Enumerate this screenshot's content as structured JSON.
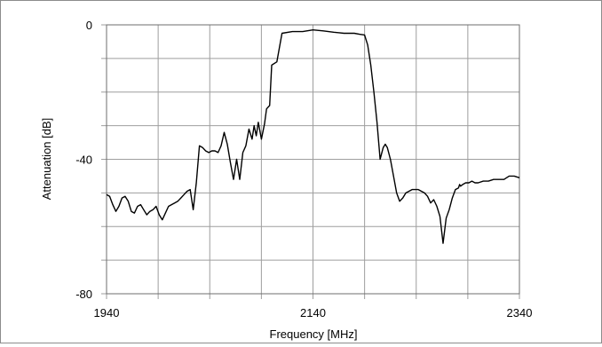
{
  "chart_data": {
    "type": "line",
    "xlabel": "Frequency [MHz]",
    "ylabel": "Attenuation  [dB]",
    "xlim": [
      1940,
      2340
    ],
    "ylim": [
      -80,
      0
    ],
    "x_tick_labels": [
      {
        "value": 1940,
        "label": "1940"
      },
      {
        "value": 2140,
        "label": "2140"
      },
      {
        "value": 2340,
        "label": "2340"
      }
    ],
    "y_tick_labels": [
      {
        "value": 0,
        "label": "0"
      },
      {
        "value": -40,
        "label": "-40"
      },
      {
        "value": -80,
        "label": "-80"
      }
    ],
    "grid_x": [
      1940,
      1990,
      2040,
      2090,
      2140,
      2190,
      2240,
      2290,
      2340
    ],
    "grid_y": [
      0,
      -10,
      -20,
      -30,
      -40,
      -50,
      -60,
      -70,
      -80
    ],
    "grid": true,
    "line_color": "#000000",
    "grid_color": "#9e9e9e",
    "series": [
      {
        "x": [
          1940,
          1943,
          1946,
          1949,
          1952,
          1955,
          1958,
          1961,
          1964,
          1967,
          1970,
          1973,
          1976,
          1979,
          1982,
          1985,
          1988,
          1991,
          1994,
          1997,
          2000,
          2003,
          2006,
          2009,
          2012,
          2015,
          2018,
          2021,
          2024,
          2027,
          2030,
          2033,
          2036,
          2039,
          2042,
          2045,
          2048,
          2051,
          2054,
          2057,
          2060,
          2063,
          2066,
          2069,
          2072,
          2075,
          2078,
          2081,
          2083,
          2085,
          2087,
          2090,
          2093,
          2095,
          2098,
          2100,
          2105,
          2110,
          2120,
          2130,
          2140,
          2150,
          2160,
          2170,
          2180,
          2185,
          2190,
          2193,
          2196,
          2199,
          2202,
          2205,
          2208,
          2210,
          2212,
          2215,
          2218,
          2221,
          2224,
          2227,
          2230,
          2233,
          2236,
          2239,
          2242,
          2245,
          2248,
          2251,
          2254,
          2257,
          2260,
          2263,
          2266,
          2269,
          2272,
          2275,
          2278,
          2281,
          2282,
          2283,
          2285,
          2288,
          2291,
          2294,
          2297,
          2300,
          2305,
          2310,
          2315,
          2320,
          2325,
          2330,
          2335,
          2340
        ],
        "y": [
          -50.5,
          -51,
          -53.5,
          -55.5,
          -54,
          -51.5,
          -51,
          -52.5,
          -55.5,
          -56,
          -54,
          -53.5,
          -55,
          -56.5,
          -55.5,
          -55,
          -54,
          -56.5,
          -58,
          -56,
          -54,
          -53.5,
          -53,
          -52.5,
          -51.5,
          -50.5,
          -49.5,
          -49,
          -55,
          -47,
          -36,
          -36.5,
          -37.5,
          -38,
          -37.5,
          -37.5,
          -38,
          -36,
          -32,
          -35.5,
          -41,
          -46,
          -40,
          -46,
          -38,
          -36,
          -31,
          -34,
          -30,
          -33,
          -29,
          -34,
          -29.5,
          -25,
          -24,
          -12,
          -11,
          -2.5,
          -2,
          -2,
          -1.5,
          -1.8,
          -2.2,
          -2.5,
          -2.5,
          -2.8,
          -3,
          -6,
          -12,
          -20,
          -29,
          -40,
          -36.5,
          -35.5,
          -36.5,
          -40,
          -45,
          -50,
          -52.5,
          -51.5,
          -50,
          -49.5,
          -49,
          -49,
          -49,
          -49.5,
          -50,
          -51,
          -53,
          -52,
          -54,
          -57,
          -65,
          -57.5,
          -55,
          -51.5,
          -49,
          -48.5,
          -47.5,
          -48,
          -47.5,
          -47,
          -47,
          -46.5,
          -47,
          -47,
          -46.5,
          -46.5,
          -46,
          -46,
          -46,
          -45,
          -45,
          -45.5
        ]
      }
    ]
  }
}
